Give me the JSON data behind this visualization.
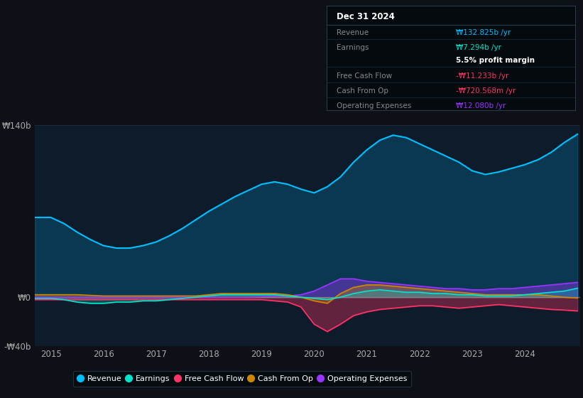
{
  "bg_color": "#0d1117",
  "plot_bg_color": "#0d1b2a",
  "grid_color": "#1a2a3a",
  "revenue_color": "#00bfff",
  "earnings_color": "#00e5cc",
  "free_cash_flow_color": "#ff3366",
  "cash_from_op_color": "#cc8800",
  "operating_expenses_color": "#9933ff",
  "ylim": [
    -40,
    140
  ],
  "yticks": [
    -40,
    0,
    140
  ],
  "ytick_labels": [
    "-₩40b",
    "₩0",
    "₩140b"
  ],
  "xticks": [
    2015,
    2016,
    2017,
    2018,
    2019,
    2020,
    2021,
    2022,
    2023,
    2024
  ],
  "legend_labels": [
    "Revenue",
    "Earnings",
    "Free Cash Flow",
    "Cash From Op",
    "Operating Expenses"
  ],
  "info_box": {
    "title": "Dec 31 2024",
    "rows": [
      {
        "label": "Revenue",
        "value": "₩132.825b /yr",
        "color": "#00bfff",
        "separator": true
      },
      {
        "label": "Earnings",
        "value": "₩7.294b /yr",
        "color": "#00e5cc",
        "separator": false
      },
      {
        "label": "",
        "value": "5.5% profit margin",
        "color": "#ffffff",
        "separator": true
      },
      {
        "label": "Free Cash Flow",
        "value": "-₩11.233b /yr",
        "color": "#ff3366",
        "separator": true
      },
      {
        "label": "Cash From Op",
        "value": "-₩720.568m /yr",
        "color": "#ff3366",
        "separator": true
      },
      {
        "label": "Operating Expenses",
        "value": "₩12.080b /yr",
        "color": "#9933ff",
        "separator": false
      }
    ]
  },
  "x": [
    2014.7,
    2015.0,
    2015.25,
    2015.5,
    2015.75,
    2016.0,
    2016.25,
    2016.5,
    2016.75,
    2017.0,
    2017.25,
    2017.5,
    2017.75,
    2018.0,
    2018.25,
    2018.5,
    2018.75,
    2019.0,
    2019.25,
    2019.5,
    2019.75,
    2020.0,
    2020.25,
    2020.5,
    2020.75,
    2021.0,
    2021.25,
    2021.5,
    2021.75,
    2022.0,
    2022.25,
    2022.5,
    2022.75,
    2023.0,
    2023.25,
    2023.5,
    2023.75,
    2024.0,
    2024.25,
    2024.5,
    2024.75,
    2025.0
  ],
  "revenue": [
    65,
    65,
    60,
    53,
    47,
    42,
    40,
    40,
    42,
    45,
    50,
    56,
    63,
    70,
    76,
    82,
    87,
    92,
    94,
    92,
    88,
    85,
    90,
    98,
    110,
    120,
    128,
    132,
    130,
    125,
    120,
    115,
    110,
    103,
    100,
    102,
    105,
    108,
    112,
    118,
    126,
    132.8
  ],
  "earnings": [
    -1,
    -1,
    -2,
    -4,
    -5,
    -5,
    -4,
    -4,
    -3,
    -3,
    -2,
    -1,
    0,
    1,
    2,
    2,
    2,
    2,
    2,
    1,
    0,
    -1,
    -2,
    0,
    3,
    5,
    6,
    5,
    4,
    4,
    3,
    3,
    2,
    2,
    1,
    1,
    1,
    2,
    3,
    4,
    5,
    7.3
  ],
  "free_cash_flow": [
    -2,
    -2,
    -2,
    -2,
    -2,
    -2,
    -2,
    -2,
    -2,
    -2,
    -2,
    -2,
    -2,
    -2,
    -2,
    -2,
    -2,
    -2,
    -3,
    -4,
    -8,
    -22,
    -28,
    -22,
    -15,
    -12,
    -10,
    -9,
    -8,
    -7,
    -7,
    -8,
    -9,
    -8,
    -7,
    -6,
    -7,
    -8,
    -9,
    -10,
    -10.5,
    -11.2
  ],
  "cash_from_op": [
    2,
    2,
    2,
    2,
    1.5,
    1,
    1,
    1,
    1,
    1,
    1,
    1,
    1,
    2,
    3,
    3,
    3,
    3,
    3,
    2,
    0,
    -3,
    -5,
    3,
    8,
    10,
    10,
    9,
    8,
    7,
    6,
    5,
    4,
    3,
    2,
    2,
    2,
    2,
    2,
    1,
    0,
    -0.7
  ],
  "operating_expenses": [
    0,
    0,
    0,
    0,
    0,
    0,
    0,
    0,
    0,
    0,
    0,
    0,
    0,
    0,
    0,
    0,
    0,
    0.5,
    1,
    1,
    2,
    5,
    10,
    15,
    15,
    13,
    12,
    11,
    10,
    9,
    8,
    7,
    7,
    6,
    6,
    7,
    7,
    8,
    9,
    10,
    11,
    12.08
  ]
}
